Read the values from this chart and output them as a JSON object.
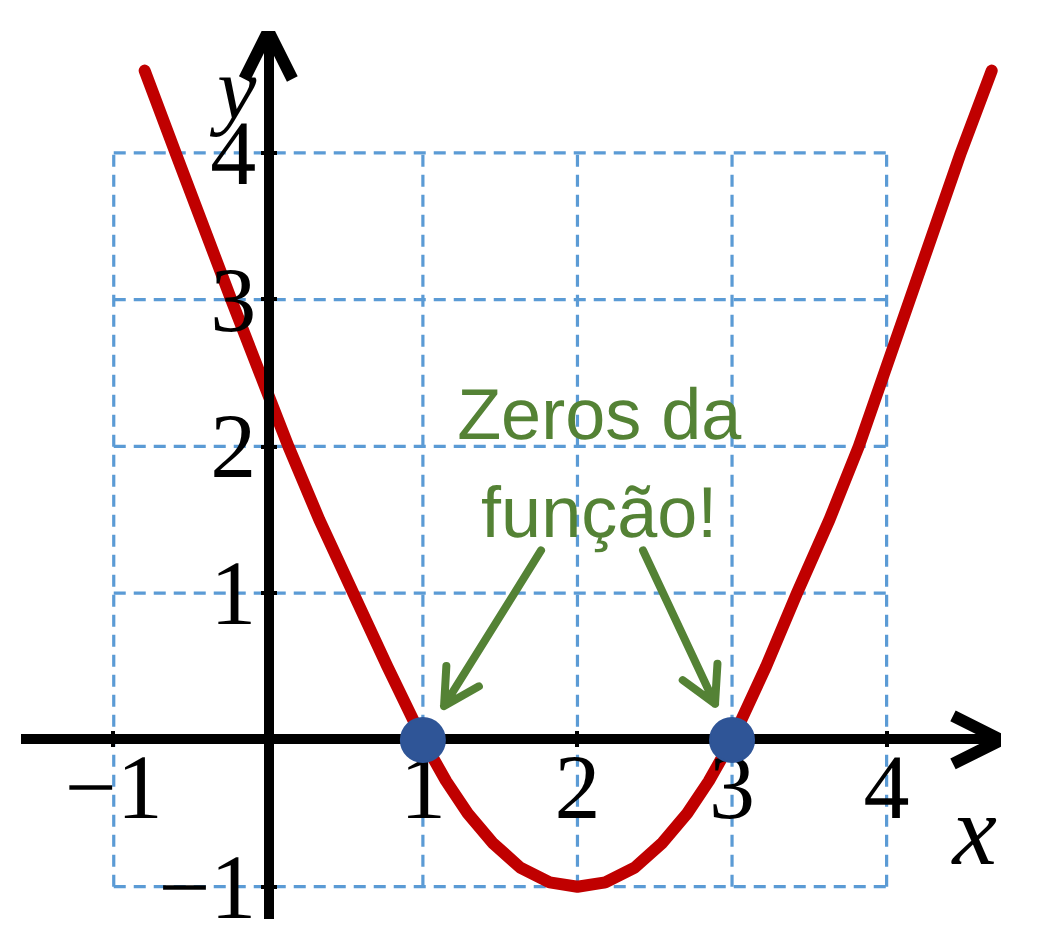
{
  "chart_data": {
    "type": "line",
    "xlabel": "x",
    "ylabel": "y",
    "xlim": [
      -1.6,
      4.74
    ],
    "ylim": [
      -1.22,
      4.83
    ],
    "xticks": [
      {
        "value": -1,
        "label": "−1"
      },
      1,
      2,
      3,
      4
    ],
    "yticks": [
      {
        "value": -1,
        "label": "−1"
      },
      1,
      2,
      3,
      4
    ],
    "grid": true,
    "series": [
      {
        "color": "#c00000",
        "x": [
          -0.8,
          -0.6,
          -0.24,
          0,
          0.13,
          0.33,
          0.55,
          0.77,
          1,
          1.15,
          1.29,
          1.45,
          1.63,
          1.82,
          2,
          2.18,
          2.37,
          2.55,
          2.71,
          2.85,
          3,
          3.22,
          3.42,
          3.63,
          3.82,
          4.15,
          4.48,
          4.68
        ],
        "values": [
          4.56,
          4,
          3,
          2.35,
          2,
          1.5,
          1,
          0.5,
          0,
          -0.28,
          -0.5,
          -0.7,
          -0.87,
          -0.97,
          -1,
          -0.97,
          -0.87,
          -0.7,
          -0.5,
          -0.28,
          0,
          0.5,
          1,
          1.5,
          2,
          3,
          4,
          4.56
        ]
      },
      {
        "type": "scatter",
        "color": "#2f5597",
        "marker": "circle",
        "x": [
          1,
          3
        ],
        "values": [
          0,
          0
        ]
      }
    ],
    "annotations": [
      "Zeros da função!"
    ]
  }
}
